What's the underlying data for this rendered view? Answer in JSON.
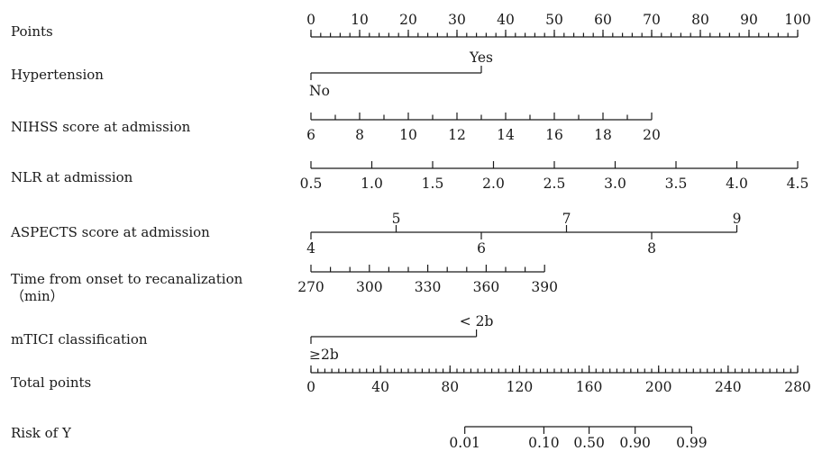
{
  "chart_data": {
    "type": "nomogram",
    "title": "",
    "point_scale": [
      0,
      100
    ],
    "rows": [
      {
        "label": "Points",
        "kind": "points",
        "min": 0,
        "max": 100,
        "ticks": [
          0,
          10,
          20,
          30,
          40,
          50,
          60,
          70,
          80,
          90,
          100
        ],
        "tick_labels": [
          "0",
          "10",
          "20",
          "30",
          "40",
          "50",
          "60",
          "70",
          "80",
          "90",
          "100"
        ],
        "minor_step": 2
      },
      {
        "label": "Hypertension",
        "kind": "categorical",
        "categories": [
          {
            "label": "No",
            "points": 0,
            "side": "below"
          },
          {
            "label": "Yes",
            "points": 35,
            "side": "above"
          }
        ]
      },
      {
        "label": "NIHSS score at admission",
        "kind": "numeric",
        "ticks": [
          6,
          8,
          10,
          12,
          14,
          16,
          18,
          20
        ],
        "tick_labels": [
          "6",
          "8",
          "10",
          "12",
          "14",
          "16",
          "18",
          "20"
        ],
        "points": [
          0,
          10,
          20,
          30,
          40,
          50,
          60,
          70
        ],
        "minor_ticks": [
          7,
          9,
          11,
          13,
          15,
          17,
          19
        ],
        "minor_points": [
          5,
          15,
          25,
          35,
          45,
          55,
          65
        ],
        "label_side": "below"
      },
      {
        "label": "NLR at admission",
        "kind": "numeric",
        "ticks": [
          0.5,
          1.0,
          1.5,
          2.0,
          2.5,
          3.0,
          3.5,
          4.0,
          4.5
        ],
        "tick_labels": [
          "0.5",
          "1.0",
          "1.5",
          "2.0",
          "2.5",
          "3.0",
          "3.5",
          "4.0",
          "4.5"
        ],
        "points": [
          0,
          12.5,
          25,
          37.5,
          50,
          62.5,
          75,
          87.5,
          100
        ],
        "label_side": "below"
      },
      {
        "label": "ASPECTS score at admission",
        "kind": "numeric_alternating",
        "ticks": [
          4,
          5,
          6,
          7,
          8,
          9
        ],
        "tick_labels": [
          "4",
          "5",
          "6",
          "7",
          "8",
          "9"
        ],
        "points": [
          0,
          17.5,
          35,
          52.5,
          70,
          87.5
        ],
        "label_sides": [
          "below",
          "above",
          "below",
          "above",
          "below",
          "above"
        ]
      },
      {
        "label": "Time from onset to recanalization",
        "label_line2": "（min）",
        "kind": "numeric",
        "ticks": [
          270,
          300,
          330,
          360,
          390
        ],
        "tick_labels": [
          "270",
          "300",
          "330",
          "360",
          "390"
        ],
        "points": [
          0,
          12,
          24,
          36,
          48
        ],
        "minor_ticks": [
          280,
          290,
          310,
          320,
          340,
          350,
          370,
          380
        ],
        "minor_points": [
          4,
          8,
          16,
          20,
          28,
          32,
          40,
          44
        ],
        "label_side": "below"
      },
      {
        "label": "mTICI classification",
        "kind": "categorical",
        "categories": [
          {
            "label": "≥2b",
            "points": 0,
            "side": "below"
          },
          {
            "label": "< 2b",
            "points": 34,
            "side": "above"
          }
        ]
      },
      {
        "label": "Total points",
        "kind": "total",
        "min": 0,
        "max": 280,
        "ticks": [
          0,
          40,
          80,
          120,
          160,
          200,
          240,
          280
        ],
        "tick_labels": [
          "0",
          "40",
          "80",
          "120",
          "160",
          "200",
          "240",
          "280"
        ],
        "minor_step": 4
      },
      {
        "label": "Risk of Y",
        "kind": "risk",
        "ticks": [
          0.01,
          0.1,
          0.5,
          0.9,
          0.99
        ],
        "tick_labels": [
          "0.01",
          "0.10",
          "0.50",
          "0.90",
          "0.99"
        ],
        "total_points": [
          88.5,
          134,
          160,
          186.5,
          219
        ]
      }
    ]
  }
}
